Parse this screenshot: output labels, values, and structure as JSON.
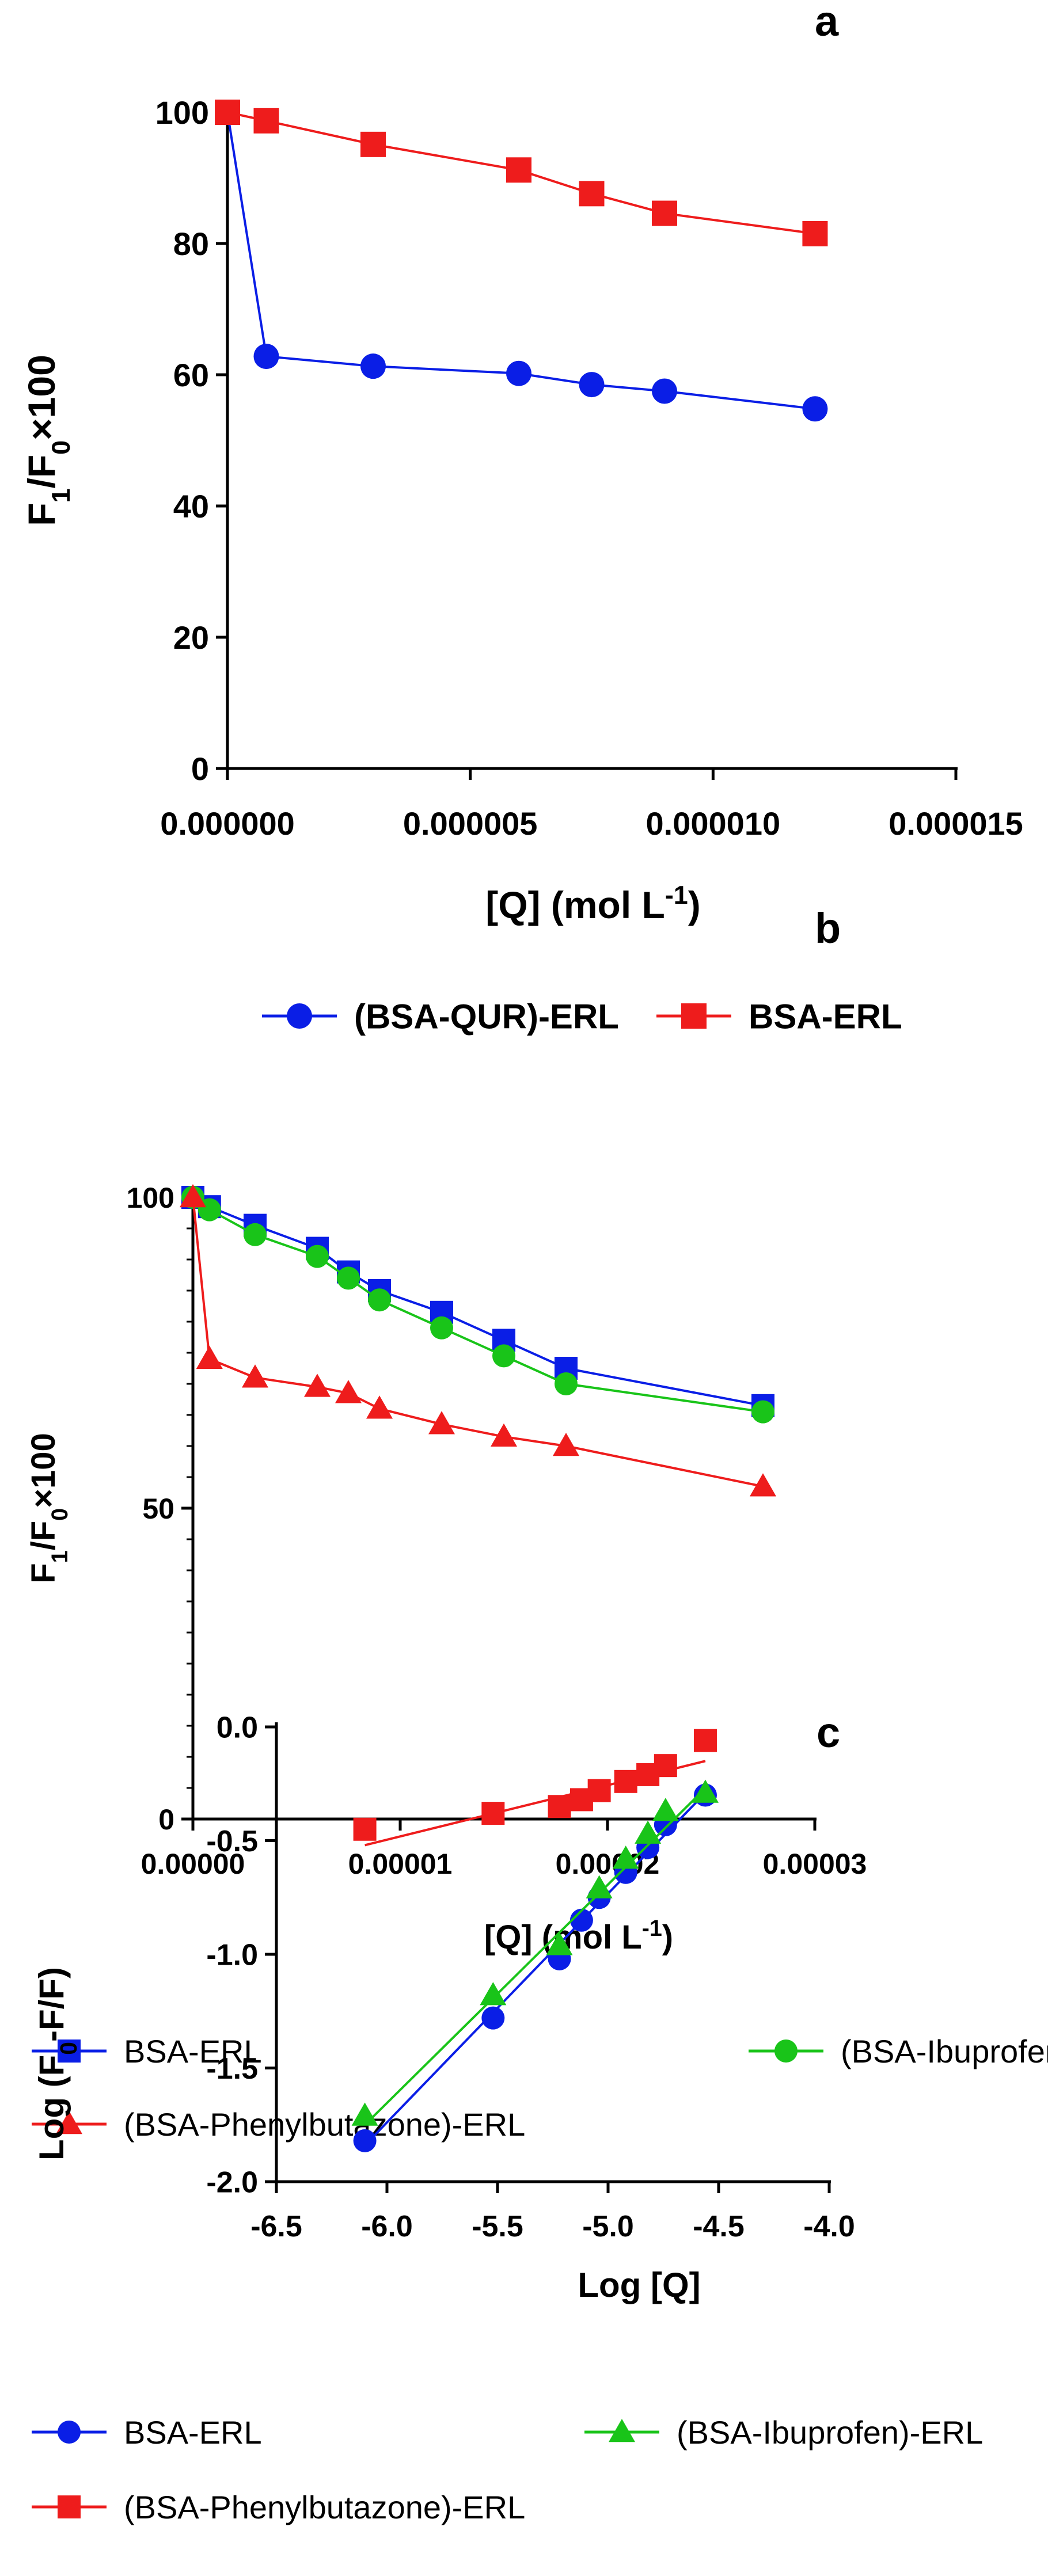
{
  "chart_data": [
    {
      "type": "line",
      "panel_label": "a",
      "title": "",
      "xlabel": "[Q] (mol L",
      "xlabel_sup": "-1",
      "xlabel_end": ")",
      "ylabel_parts": [
        "F",
        "1",
        "/F",
        "0",
        "×100"
      ],
      "xlim": [
        0,
        1.5e-05
      ],
      "ylim": [
        0,
        100
      ],
      "xticks": [
        0,
        5e-06,
        1e-05,
        1.5e-05
      ],
      "xtick_labels": [
        "0.000000",
        "0.000005",
        "0.000010",
        "0.000015"
      ],
      "yticks": [
        0,
        20,
        40,
        60,
        80,
        100
      ],
      "ytick_labels": [
        "0",
        "20",
        "40",
        "60",
        "80",
        "100"
      ],
      "series": [
        {
          "name": "(BSA-QUR)-ERL",
          "color": "#0a1ee6",
          "marker": "circle",
          "x": [
            0,
            8e-07,
            3e-06,
            6e-06,
            7.5e-06,
            9e-06,
            1.21e-05
          ],
          "y": [
            100,
            62.8,
            61.3,
            60.2,
            58.5,
            57.5,
            54.8
          ]
        },
        {
          "name": "BSA-ERL",
          "color": "#ee1c1c",
          "marker": "square",
          "x": [
            0,
            8e-07,
            3e-06,
            6e-06,
            7.5e-06,
            9e-06,
            1.21e-05
          ],
          "y": [
            100,
            98.7,
            95.1,
            91.2,
            87.6,
            84.6,
            81.5
          ]
        }
      ]
    },
    {
      "type": "line",
      "panel_label": "b",
      "title": "",
      "xlabel": "[Q] (mol L",
      "xlabel_sup": "-1",
      "xlabel_end": ")",
      "ylabel_parts": [
        "F",
        "1",
        "/F",
        "0",
        "×100"
      ],
      "xlim": [
        0,
        3e-05
      ],
      "ylim": [
        0,
        100
      ],
      "xticks": [
        0,
        1e-05,
        2e-05,
        3e-05
      ],
      "xtick_labels": [
        "0.00000",
        "0.00001",
        "0.00002",
        "0.00003"
      ],
      "yticks": [
        0,
        50,
        100
      ],
      "ytick_labels": [
        "0",
        "50",
        "100"
      ],
      "series": [
        {
          "name": "BSA-ERL",
          "color": "#0a1ee6",
          "marker": "square",
          "x": [
            0,
            8e-07,
            3e-06,
            6e-06,
            7.5e-06,
            9e-06,
            1.2e-05,
            1.5e-05,
            1.8e-05,
            2.75e-05
          ],
          "y": [
            100,
            98.5,
            95.5,
            91.8,
            88.0,
            85.0,
            81.5,
            77.0,
            72.5,
            66.5
          ]
        },
        {
          "name": "(BSA-Ibuprofen)-ERL",
          "color": "#19c419",
          "marker": "circle",
          "x": [
            0,
            8e-07,
            3e-06,
            6e-06,
            7.5e-06,
            9e-06,
            1.2e-05,
            1.5e-05,
            1.8e-05,
            2.75e-05
          ],
          "y": [
            100,
            98.0,
            94.0,
            90.5,
            87.0,
            83.5,
            79.0,
            74.5,
            70.0,
            65.5
          ]
        },
        {
          "name": "(BSA-Phenylbutazone)-ERL",
          "color": "#ee1c1c",
          "marker": "triangle",
          "x": [
            0,
            8e-07,
            3e-06,
            6e-06,
            7.5e-06,
            9e-06,
            1.2e-05,
            1.5e-05,
            1.8e-05,
            2.75e-05
          ],
          "y": [
            100,
            74.0,
            71.0,
            69.5,
            68.5,
            66.0,
            63.5,
            61.5,
            60.0,
            53.5
          ]
        }
      ]
    },
    {
      "type": "scatter",
      "panel_label": "c",
      "title": "",
      "xlabel": "Log [Q]",
      "ylabel_parts": [
        "Log (F",
        "0",
        "-F/F)"
      ],
      "xlim": [
        -6.5,
        -4.0
      ],
      "ylim": [
        -2.0,
        0.0
      ],
      "xticks": [
        -6.5,
        -6.0,
        -5.5,
        -5.0,
        -4.5,
        -4.0
      ],
      "xtick_labels": [
        "-6.5",
        "-6.0",
        "-5.5",
        "-5.0",
        "-4.5",
        "-4.0"
      ],
      "yticks": [
        -2.0,
        -1.5,
        -1.0,
        -0.5,
        0.0
      ],
      "ytick_labels": [
        "-2.0",
        "-1.5",
        "-1.0",
        "-0.5",
        "0.0"
      ],
      "series": [
        {
          "name": "BSA-ERL",
          "color": "#0a1ee6",
          "marker": "circle",
          "x": [
            -6.1,
            -5.52,
            -5.22,
            -5.12,
            -5.04,
            -4.92,
            -4.82,
            -4.74,
            -4.56
          ],
          "y": [
            -1.82,
            -1.28,
            -1.02,
            -0.85,
            -0.75,
            -0.64,
            -0.53,
            -0.43,
            -0.3
          ],
          "fit": [
            [
              -6.1,
              -1.84
            ],
            [
              -4.56,
              -0.29
            ]
          ]
        },
        {
          "name": "(BSA-Ibuprofen)-ERL",
          "color": "#19c419",
          "marker": "triangle",
          "x": [
            -6.1,
            -5.52,
            -5.22,
            -5.04,
            -4.92,
            -4.82,
            -4.74,
            -4.56
          ],
          "y": [
            -1.71,
            -1.18,
            -0.96,
            -0.71,
            -0.58,
            -0.47,
            -0.37,
            -0.29
          ],
          "fit": [
            [
              -6.1,
              -1.75
            ],
            [
              -4.56,
              -0.27
            ]
          ]
        },
        {
          "name": "(BSA-Phenylbutazone)-ERL",
          "color": "#ee1c1c",
          "marker": "square",
          "x": [
            -6.1,
            -5.52,
            -5.22,
            -5.12,
            -5.04,
            -4.92,
            -4.82,
            -4.74,
            -4.56
          ],
          "y": [
            -0.45,
            -0.38,
            -0.35,
            -0.32,
            -0.28,
            -0.24,
            -0.21,
            -0.17,
            -0.06
          ],
          "fit": [
            [
              -6.1,
              -0.52
            ],
            [
              -4.56,
              -0.15
            ]
          ]
        }
      ]
    }
  ]
}
